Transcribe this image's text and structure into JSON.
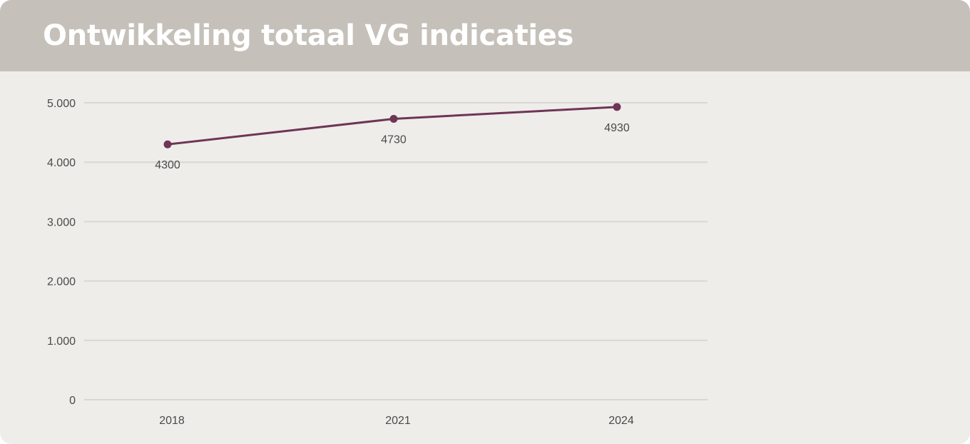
{
  "header": {
    "title": "Ontwikkeling totaal VG indicaties"
  },
  "colors": {
    "header_bg": "#c5c0b9",
    "panel_bg": "#efede9",
    "series": "#6e3556",
    "grid": "#d9d7d4",
    "text": "#4a4a4a"
  },
  "chart_data": {
    "type": "line",
    "title": "Ontwikkeling totaal VG indicaties",
    "xlabel": "",
    "ylabel": "",
    "categories": [
      "2018",
      "2021",
      "2024"
    ],
    "series": [
      {
        "values": [
          4300,
          4730,
          4930
        ],
        "data_labels": [
          "4300",
          "4730",
          "4930"
        ],
        "color": "#6e3556"
      }
    ],
    "ylim": [
      0,
      5000
    ],
    "yticks": [
      0,
      1000,
      2000,
      3000,
      4000,
      5000
    ],
    "ytick_labels": [
      "0",
      "1.000",
      "2.000",
      "3.000",
      "4.000",
      "5.000"
    ],
    "grid": true,
    "legend": "none"
  }
}
